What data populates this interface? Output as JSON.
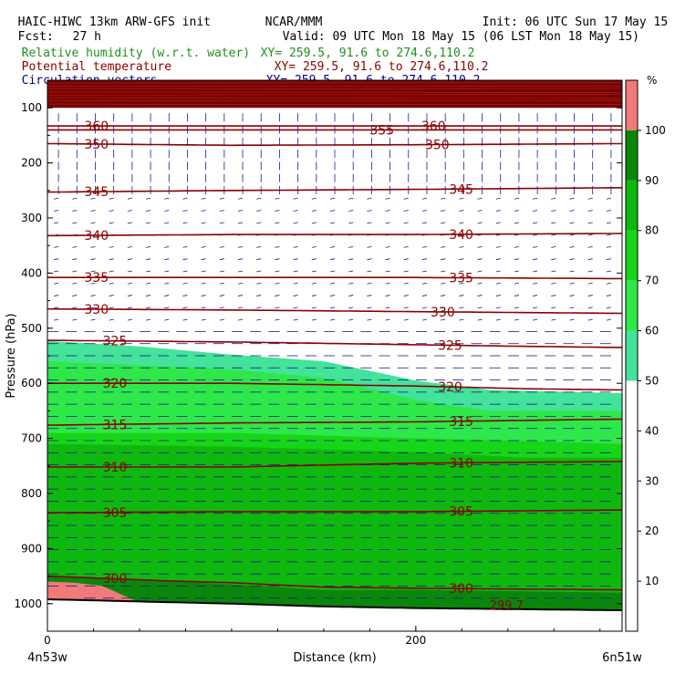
{
  "header": {
    "model": "HAIC-HIWC 13km ARW-GFS init",
    "org": "NCAR/MMM",
    "init": "Init: 06 UTC Sun 17 May 15",
    "fcst_label": "Fcst:",
    "fcst_value": "27 h",
    "valid": "Valid: 09 UTC Mon 18 May 15 (06 LST Mon 18 May 15)",
    "fields": [
      {
        "name": "Relative humidity (w.r.t. water)",
        "xy": "XY= 259.5, 91.6 to 274.6,110.2",
        "color": "#1f8f1f"
      },
      {
        "name": "Potential temperature",
        "xy": "XY= 259.5, 91.6 to 274.6,110.2",
        "color": "#8b0000"
      },
      {
        "name": "Circulation vectors",
        "xy": "XY= 259.5, 91.6 to 274.6,110.2",
        "color": "#00008b"
      }
    ]
  },
  "chart_data": {
    "type": "cross-section",
    "xlabel": "Distance (km)",
    "ylabel": "Pressure (hPa)",
    "x_ticks": [
      0,
      200
    ],
    "y_ticks": [
      100,
      200,
      300,
      400,
      500,
      600,
      700,
      800,
      900,
      1000
    ],
    "xlim": [
      0,
      312
    ],
    "ylim": [
      50,
      1050
    ],
    "x_endpoints": [
      "4n53w",
      "6n51w"
    ],
    "colorbar": {
      "unit": "%",
      "ticks": [
        10,
        20,
        30,
        40,
        50,
        60,
        70,
        80,
        90,
        100
      ],
      "colors": [
        {
          "from": 50,
          "to": 60,
          "color": "#43e39a"
        },
        {
          "from": 60,
          "to": 70,
          "color": "#2ee84a"
        },
        {
          "from": 70,
          "to": 80,
          "color": "#17d617"
        },
        {
          "from": 80,
          "to": 90,
          "color": "#0fb80f"
        },
        {
          "from": 90,
          "to": 100,
          "color": "#0a870a"
        },
        {
          "from": 100,
          "to": 110,
          "color": "#f07a7a"
        }
      ]
    },
    "rh_fields": [
      {
        "lo": 50,
        "top": [
          [
            0,
            523
          ],
          [
            50,
            533
          ],
          [
            100,
            548
          ],
          [
            150,
            560
          ],
          [
            200,
            595
          ],
          [
            240,
            612
          ],
          [
            312,
            618
          ]
        ]
      },
      {
        "lo": 60,
        "top": [
          [
            0,
            560
          ],
          [
            100,
            575
          ],
          [
            150,
            590
          ],
          [
            200,
            630
          ],
          [
            240,
            650
          ],
          [
            312,
            650
          ]
        ]
      },
      {
        "lo": 70,
        "top": [
          [
            0,
            690
          ],
          [
            100,
            690
          ],
          [
            200,
            700
          ],
          [
            260,
            705
          ],
          [
            312,
            710
          ]
        ]
      },
      {
        "lo": 80,
        "top": [
          [
            0,
            710
          ],
          [
            100,
            715
          ],
          [
            200,
            725
          ],
          [
            260,
            735
          ],
          [
            312,
            735
          ]
        ]
      },
      {
        "lo": 90,
        "top": [
          [
            0,
            950
          ],
          [
            50,
            955
          ],
          [
            100,
            965
          ],
          [
            150,
            975
          ],
          [
            200,
            975
          ],
          [
            312,
            980
          ]
        ]
      }
    ],
    "theta_contours": [
      {
        "value": 360,
        "p": [
          [
            0,
            133
          ],
          [
            312,
            133
          ]
        ],
        "label_x": [
          20,
          203
        ]
      },
      {
        "value": 355,
        "p": [
          [
            0,
            140
          ],
          [
            312,
            140
          ]
        ],
        "label_x": [
          175
        ]
      },
      {
        "value": 350,
        "p": [
          [
            0,
            165
          ],
          [
            100,
            168
          ],
          [
            200,
            167
          ],
          [
            312,
            165
          ]
        ],
        "label_x": [
          20,
          205
        ]
      },
      {
        "value": 345,
        "p": [
          [
            0,
            253
          ],
          [
            100,
            250
          ],
          [
            200,
            248
          ],
          [
            312,
            245
          ]
        ],
        "label_x": [
          20,
          218
        ]
      },
      {
        "value": 340,
        "p": [
          [
            0,
            332
          ],
          [
            100,
            330
          ],
          [
            200,
            330
          ],
          [
            312,
            328
          ]
        ],
        "label_x": [
          20,
          218
        ]
      },
      {
        "value": 335,
        "p": [
          [
            0,
            408
          ],
          [
            100,
            408
          ],
          [
            200,
            408
          ],
          [
            312,
            410
          ]
        ],
        "label_x": [
          20,
          218
        ]
      },
      {
        "value": 330,
        "p": [
          [
            0,
            465
          ],
          [
            100,
            467
          ],
          [
            200,
            470
          ],
          [
            312,
            473
          ]
        ],
        "label_x": [
          20,
          208
        ]
      },
      {
        "value": 325,
        "p": [
          [
            0,
            522
          ],
          [
            100,
            525
          ],
          [
            200,
            530
          ],
          [
            260,
            533
          ],
          [
            312,
            535
          ]
        ],
        "label_x": [
          30,
          212
        ]
      },
      {
        "value": 320,
        "p": [
          [
            0,
            600
          ],
          [
            100,
            600
          ],
          [
            200,
            605
          ],
          [
            260,
            610
          ],
          [
            312,
            612
          ]
        ],
        "label_x": [
          30,
          212
        ]
      },
      {
        "value": 315,
        "p": [
          [
            0,
            676
          ],
          [
            100,
            672
          ],
          [
            200,
            670
          ],
          [
            312,
            665
          ]
        ],
        "label_x": [
          30,
          218
        ]
      },
      {
        "value": 310,
        "p": [
          [
            0,
            752
          ],
          [
            100,
            752
          ],
          [
            200,
            745
          ],
          [
            312,
            742
          ]
        ],
        "label_x": [
          30,
          218
        ]
      },
      {
        "value": 305,
        "p": [
          [
            0,
            835
          ],
          [
            100,
            833
          ],
          [
            200,
            833
          ],
          [
            312,
            830
          ]
        ],
        "label_x": [
          30,
          218
        ]
      },
      {
        "value": 300,
        "p": [
          [
            0,
            950
          ],
          [
            60,
            958
          ],
          [
            100,
            962
          ],
          [
            150,
            970
          ],
          [
            200,
            972
          ],
          [
            312,
            975
          ]
        ],
        "label_x": [
          30,
          218
        ]
      }
    ],
    "surface_label": "299.7"
  }
}
